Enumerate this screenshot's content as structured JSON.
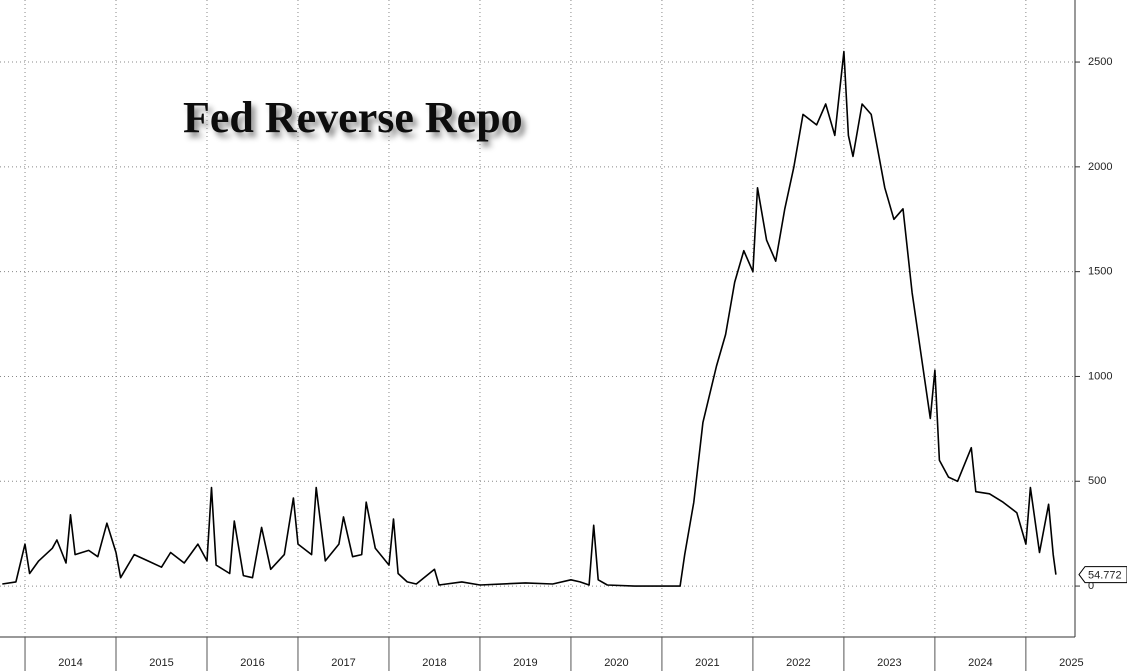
{
  "chart_data": {
    "type": "line",
    "title": "Fed Reverse Repo",
    "x": [
      2013.75,
      2013.9,
      2014.0,
      2014.05,
      2014.15,
      2014.3,
      2014.35,
      2014.45,
      2014.5,
      2014.55,
      2014.7,
      2014.8,
      2014.9,
      2015.0,
      2015.05,
      2015.2,
      2015.35,
      2015.5,
      2015.6,
      2015.75,
      2015.9,
      2016.0,
      2016.05,
      2016.1,
      2016.25,
      2016.3,
      2016.4,
      2016.5,
      2016.6,
      2016.7,
      2016.85,
      2016.95,
      2017.0,
      2017.15,
      2017.2,
      2017.3,
      2017.45,
      2017.5,
      2017.6,
      2017.7,
      2017.75,
      2017.85,
      2018.0,
      2018.05,
      2018.1,
      2018.2,
      2018.3,
      2018.5,
      2018.55,
      2018.8,
      2019.0,
      2019.5,
      2019.8,
      2020.0,
      2020.1,
      2020.2,
      2020.25,
      2020.3,
      2020.4,
      2020.7,
      2021.0,
      2021.2,
      2021.25,
      2021.35,
      2021.45,
      2021.6,
      2021.7,
      2021.8,
      2021.9,
      2022.0,
      2022.05,
      2022.15,
      2022.25,
      2022.35,
      2022.45,
      2022.55,
      2022.7,
      2022.8,
      2022.9,
      2023.0,
      2023.05,
      2023.1,
      2023.2,
      2023.3,
      2023.45,
      2023.55,
      2023.65,
      2023.75,
      2023.85,
      2023.95,
      2024.0,
      2024.05,
      2024.15,
      2024.25,
      2024.4,
      2024.45,
      2024.6,
      2024.75,
      2024.9,
      2025.0,
      2025.05,
      2025.15,
      2025.25,
      2025.3,
      2025.33
    ],
    "series": [
      {
        "color": "#000000",
        "values": [
          10,
          20,
          200,
          60,
          120,
          180,
          220,
          110,
          340,
          150,
          170,
          140,
          300,
          160,
          40,
          150,
          120,
          90,
          160,
          110,
          200,
          120,
          470,
          100,
          60,
          310,
          50,
          40,
          280,
          80,
          150,
          420,
          200,
          150,
          470,
          120,
          200,
          330,
          140,
          150,
          400,
          180,
          100,
          320,
          60,
          20,
          10,
          80,
          5,
          20,
          5,
          15,
          10,
          30,
          20,
          5,
          290,
          30,
          5,
          0,
          0,
          0,
          150,
          400,
          780,
          1050,
          1200,
          1450,
          1600,
          1500,
          1900,
          1650,
          1550,
          1800,
          2000,
          2250,
          2200,
          2300,
          2150,
          2550,
          2150,
          2050,
          2300,
          2250,
          1900,
          1750,
          1800,
          1400,
          1100,
          800,
          1030,
          600,
          520,
          500,
          660,
          450,
          440,
          400,
          350,
          200,
          470,
          160,
          390,
          150,
          54.772
        ]
      }
    ],
    "xlim": [
      2013.725,
      2025.54
    ],
    "xticks": [
      2014,
      2015,
      2016,
      2017,
      2018,
      2019,
      2020,
      2021,
      2022,
      2023,
      2024,
      2025
    ],
    "ylim": [
      -243,
      2796
    ],
    "yticks": [
      0,
      500,
      1000,
      1500,
      2000,
      2500
    ],
    "grid": true
  }
}
